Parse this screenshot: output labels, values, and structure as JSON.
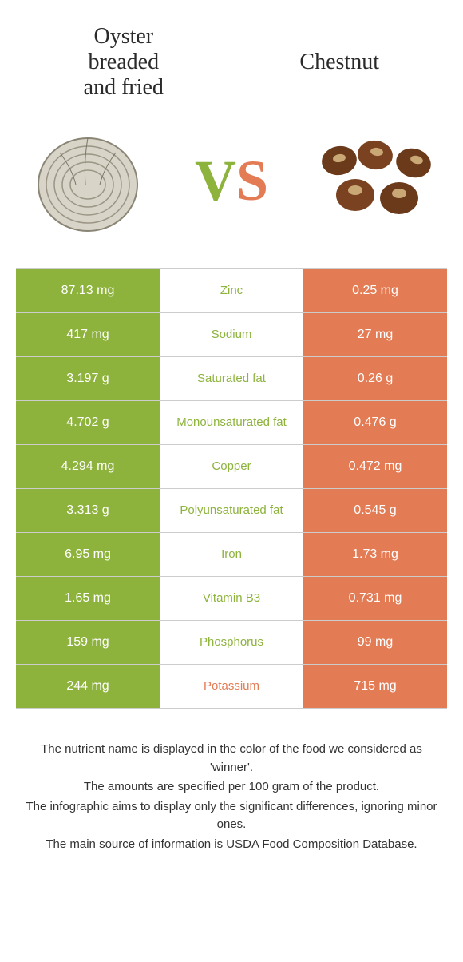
{
  "leftFood": {
    "title": "Oyster\nbreaded\nand fried"
  },
  "rightFood": {
    "title": "Chestnut"
  },
  "colors": {
    "green": "#8db33c",
    "orange": "#e37b54",
    "greenText": "#8db33c",
    "orangeText": "#e37b54"
  },
  "vs": {
    "v": "V",
    "s": "S"
  },
  "rows": [
    {
      "left": "87.13 mg",
      "nutrient": "Zinc",
      "right": "0.25 mg",
      "winner": "left"
    },
    {
      "left": "417 mg",
      "nutrient": "Sodium",
      "right": "27 mg",
      "winner": "left"
    },
    {
      "left": "3.197 g",
      "nutrient": "Saturated fat",
      "right": "0.26 g",
      "winner": "left"
    },
    {
      "left": "4.702 g",
      "nutrient": "Monounsaturated fat",
      "right": "0.476 g",
      "winner": "left"
    },
    {
      "left": "4.294 mg",
      "nutrient": "Copper",
      "right": "0.472 mg",
      "winner": "left"
    },
    {
      "left": "3.313 g",
      "nutrient": "Polyunsaturated fat",
      "right": "0.545 g",
      "winner": "left"
    },
    {
      "left": "6.95 mg",
      "nutrient": "Iron",
      "right": "1.73 mg",
      "winner": "left"
    },
    {
      "left": "1.65 mg",
      "nutrient": "Vitamin B3",
      "right": "0.731 mg",
      "winner": "left"
    },
    {
      "left": "159 mg",
      "nutrient": "Phosphorus",
      "right": "99 mg",
      "winner": "left"
    },
    {
      "left": "244 mg",
      "nutrient": "Potassium",
      "right": "715 mg",
      "winner": "right"
    }
  ],
  "footer": [
    "The nutrient name is displayed in the color of the food we considered as 'winner'.",
    "The amounts are specified per 100 gram of the product.",
    "The infographic aims to display only the significant differences, ignoring minor ones.",
    "The main source of information is USDA Food Composition Database."
  ]
}
